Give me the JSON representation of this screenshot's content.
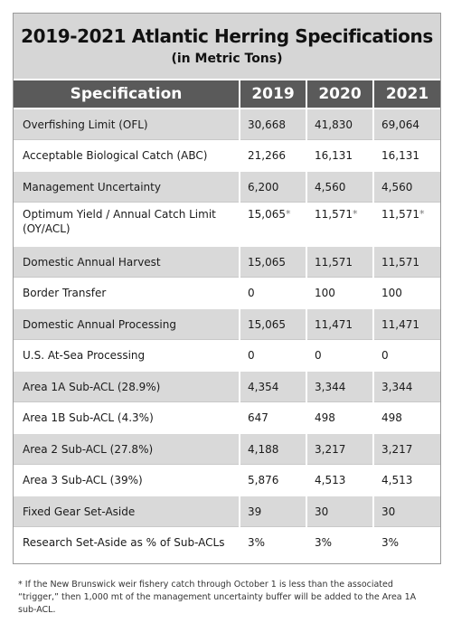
{
  "title": "2019-2021 Atlantic Herring Specifications",
  "subtitle": "(in Metric Tons)",
  "columns": [
    "Specification",
    "2019",
    "2020",
    "2021"
  ],
  "rows": [
    {
      "spec": "Overfishing Limit (OFL)",
      "v2019": "30,668",
      "v2020": "41,830",
      "v2021": "69,064"
    },
    {
      "spec": "Acceptable Biological Catch (ABC)",
      "v2019": "21,266",
      "v2020": "16,131",
      "v2021": "16,131"
    },
    {
      "spec": "Management Uncertainty",
      "v2019": "6,200",
      "v2020": "4,560",
      "v2021": "4,560"
    },
    {
      "spec": "Optimum Yield / Annual Catch Limit (OY/ACL)",
      "v2019": "15,065",
      "v2020": "11,571",
      "v2021": "11,571",
      "marker": "*"
    },
    {
      "spec": "Domestic Annual Harvest",
      "v2019": "15,065",
      "v2020": "11,571",
      "v2021": "11,571"
    },
    {
      "spec": "Border Transfer",
      "v2019": "0",
      "v2020": "100",
      "v2021": "100"
    },
    {
      "spec": "Domestic Annual Processing",
      "v2019": "15,065",
      "v2020": "11,471",
      "v2021": "11,471"
    },
    {
      "spec": "U.S. At-Sea Processing",
      "v2019": "0",
      "v2020": "0",
      "v2021": "0"
    },
    {
      "spec": "Area 1A Sub-ACL (28.9%)",
      "v2019": "4,354",
      "v2020": "3,344",
      "v2021": "3,344"
    },
    {
      "spec": "Area 1B Sub-ACL (4.3%)",
      "v2019": "647",
      "v2020": "498",
      "v2021": "498"
    },
    {
      "spec": "Area 2 Sub-ACL (27.8%)",
      "v2019": "4,188",
      "v2020": "3,217",
      "v2021": "3,217"
    },
    {
      "spec": "Area 3 Sub-ACL (39%)",
      "v2019": "5,876",
      "v2020": "4,513",
      "v2021": "4,513"
    },
    {
      "spec": "Fixed Gear Set-Aside",
      "v2019": "39",
      "v2020": "30",
      "v2021": "30"
    },
    {
      "spec": "Research Set-Aside as % of Sub-ACLs",
      "v2019": "3%",
      "v2020": "3%",
      "v2021": "3%"
    }
  ],
  "footnote": "* If the New Brunswick weir fishery catch through October 1 is less than the associated “trigger,” then 1,000 mt of the management uncertainty buffer will be added to the Area 1A sub-ACL."
}
